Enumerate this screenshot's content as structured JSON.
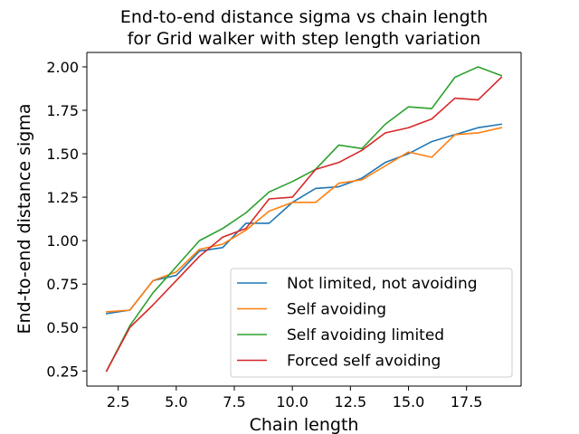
{
  "chart_data": {
    "type": "line",
    "title_line1": "End-to-end distance sigma vs chain length",
    "title_line2": "for Grid walker with step length variation",
    "xlabel": "Chain length",
    "ylabel": "End-to-end distance sigma",
    "xlim": [
      1.15,
      19.85
    ],
    "ylim": [
      0.163,
      2.083
    ],
    "x_ticks": [
      2.5,
      5.0,
      7.5,
      10.0,
      12.5,
      15.0,
      17.5
    ],
    "x_tick_labels": [
      "2.5",
      "5.0",
      "7.5",
      "10.0",
      "12.5",
      "15.0",
      "17.5"
    ],
    "y_ticks": [
      0.25,
      0.5,
      0.75,
      1.0,
      1.25,
      1.5,
      1.75,
      2.0
    ],
    "y_tick_labels": [
      "0.25",
      "0.50",
      "0.75",
      "1.00",
      "1.25",
      "1.50",
      "1.75",
      "2.00"
    ],
    "grid": false,
    "legend_position": "lower-right",
    "x": [
      2,
      3,
      4,
      5,
      6,
      7,
      8,
      9,
      10,
      11,
      12,
      13,
      14,
      15,
      16,
      17,
      18,
      19
    ],
    "series": [
      {
        "name": "Not limited, not avoiding",
        "color": "#1f77b4",
        "values": [
          0.58,
          0.6,
          0.77,
          0.8,
          0.94,
          0.96,
          1.1,
          1.1,
          1.22,
          1.3,
          1.31,
          1.36,
          1.45,
          1.5,
          1.57,
          1.61,
          1.65,
          1.67
        ]
      },
      {
        "name": "Self avoiding",
        "color": "#ff7f0e",
        "values": [
          0.59,
          0.6,
          0.77,
          0.82,
          0.95,
          0.98,
          1.06,
          1.17,
          1.22,
          1.22,
          1.33,
          1.35,
          1.43,
          1.51,
          1.48,
          1.61,
          1.62,
          1.65
        ]
      },
      {
        "name": "Self avoiding limited",
        "color": "#2ca02c",
        "values": [
          0.25,
          0.51,
          0.7,
          0.85,
          1.0,
          1.07,
          1.16,
          1.28,
          1.34,
          1.41,
          1.55,
          1.53,
          1.67,
          1.77,
          1.76,
          1.94,
          2.0,
          1.95
        ]
      },
      {
        "name": "Forced self avoiding",
        "color": "#d62728",
        "values": [
          0.25,
          0.5,
          0.63,
          0.77,
          0.91,
          1.02,
          1.07,
          1.24,
          1.25,
          1.41,
          1.45,
          1.52,
          1.62,
          1.65,
          1.7,
          1.82,
          1.81,
          1.94
        ]
      }
    ]
  }
}
